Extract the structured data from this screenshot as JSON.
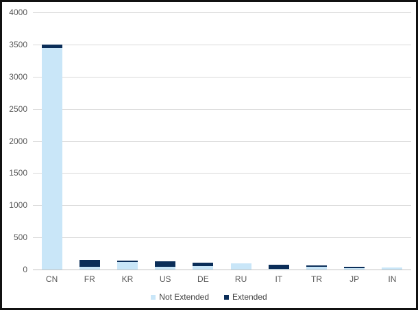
{
  "window": {
    "background": "#ffffff",
    "border_color": "#111111"
  },
  "chart_data": {
    "type": "bar",
    "stacked": true,
    "title": "",
    "xlabel": "",
    "ylabel": "",
    "categories": [
      "CN",
      "FR",
      "KR",
      "US",
      "DE",
      "RU",
      "IT",
      "TR",
      "JP",
      "IN"
    ],
    "series": [
      {
        "name": "Not Extended",
        "color": "#c9e6f8",
        "values": [
          3450,
          40,
          120,
          45,
          55,
          95,
          15,
          45,
          20,
          30
        ]
      },
      {
        "name": "Extended",
        "color": "#0b2e59",
        "values": [
          50,
          105,
          15,
          85,
          50,
          0,
          65,
          15,
          25,
          0
        ]
      }
    ],
    "totals": [
      3500,
      145,
      135,
      130,
      105,
      95,
      80,
      60,
      45,
      30
    ],
    "ylim": [
      0,
      4000
    ],
    "yticks": [
      0,
      500,
      1000,
      1500,
      2000,
      2500,
      3000,
      3500,
      4000
    ],
    "grid": "horizontal",
    "legend_position": "bottom-center",
    "legend": [
      "Not Extended",
      "Extended"
    ],
    "colors": {
      "gridline": "#d9d9d9",
      "zero_line": "#bfbfbf",
      "tick_label": "#595959",
      "legend_text": "#404040"
    }
  }
}
